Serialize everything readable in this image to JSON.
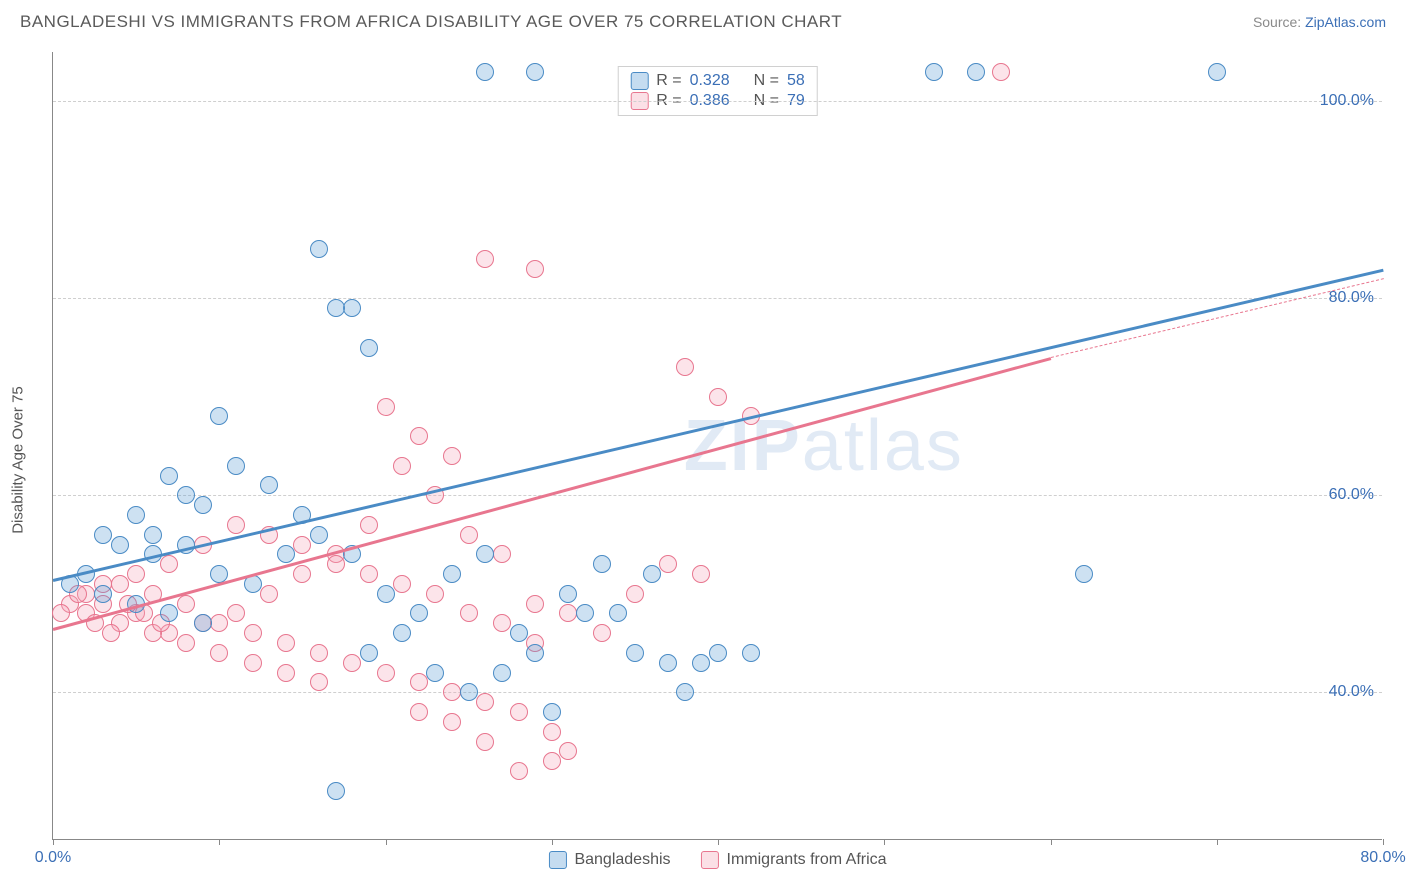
{
  "title": "BANGLADESHI VS IMMIGRANTS FROM AFRICA DISABILITY AGE OVER 75 CORRELATION CHART",
  "source_label": "Source:",
  "source_name": "ZipAtlas.com",
  "watermark": "ZIPatlas",
  "chart": {
    "type": "scatter",
    "y_axis_label": "Disability Age Over 75",
    "xlim": [
      0,
      80
    ],
    "ylim": [
      25,
      105
    ],
    "x_ticks": [
      0,
      10,
      20,
      30,
      40,
      50,
      60,
      70,
      80
    ],
    "x_tick_labels": {
      "0": "0.0%",
      "80": "80.0%"
    },
    "y_gridlines": [
      40,
      60,
      80,
      100
    ],
    "y_tick_labels": {
      "40": "40.0%",
      "60": "60.0%",
      "80": "80.0%",
      "100": "100.0%"
    },
    "background_color": "#ffffff",
    "grid_color": "#cfcfcf",
    "axis_color": "#888888",
    "tick_label_color": "#3b6fb6",
    "marker_radius": 9,
    "marker_stroke_width": 1.5,
    "marker_fill_opacity": 0.3,
    "series": [
      {
        "name": "Bangladeshis",
        "color": "#5a9bd5",
        "stroke": "#4a8bc5",
        "R": "0.328",
        "N": "58",
        "trend": {
          "x1": 0,
          "y1": 51.5,
          "x2": 80,
          "y2": 83,
          "line_width": 2.5
        },
        "points": [
          [
            26,
            103
          ],
          [
            29,
            103
          ],
          [
            53,
            103
          ],
          [
            55.5,
            103
          ],
          [
            70,
            103
          ],
          [
            16,
            85
          ],
          [
            18,
            79
          ],
          [
            17,
            79
          ],
          [
            19,
            75
          ],
          [
            10,
            68
          ],
          [
            8,
            60
          ],
          [
            9,
            59
          ],
          [
            5,
            58
          ],
          [
            3,
            56
          ],
          [
            7,
            62
          ],
          [
            4,
            55
          ],
          [
            6,
            54
          ],
          [
            2,
            52
          ],
          [
            1,
            51
          ],
          [
            3,
            50
          ],
          [
            5,
            49
          ],
          [
            7,
            48
          ],
          [
            9,
            47
          ],
          [
            6,
            56
          ],
          [
            8,
            55
          ],
          [
            10,
            52
          ],
          [
            12,
            51
          ],
          [
            14,
            54
          ],
          [
            11,
            63
          ],
          [
            13,
            61
          ],
          [
            15,
            58
          ],
          [
            16,
            56
          ],
          [
            18,
            54
          ],
          [
            20,
            50
          ],
          [
            22,
            48
          ],
          [
            21,
            46
          ],
          [
            24,
            52
          ],
          [
            26,
            54
          ],
          [
            28,
            46
          ],
          [
            27,
            42
          ],
          [
            30,
            38
          ],
          [
            25,
            40
          ],
          [
            19,
            44
          ],
          [
            17,
            30
          ],
          [
            23,
            42
          ],
          [
            29,
            44
          ],
          [
            31,
            50
          ],
          [
            33,
            53
          ],
          [
            35,
            44
          ],
          [
            37,
            43
          ],
          [
            39,
            43
          ],
          [
            40,
            44
          ],
          [
            36,
            52
          ],
          [
            38,
            40
          ],
          [
            34,
            48
          ],
          [
            32,
            48
          ],
          [
            62,
            52
          ],
          [
            42,
            44
          ]
        ]
      },
      {
        "name": "Immigrants from Africa",
        "color": "#f4a6b8",
        "stroke": "#e8768f",
        "R": "0.386",
        "N": "79",
        "trend": {
          "x1": 0,
          "y1": 46.5,
          "x2": 60,
          "y2": 74,
          "dashed_to_x": 80,
          "dashed_to_y": 82,
          "line_width": 2.5
        },
        "points": [
          [
            57,
            103
          ],
          [
            26,
            84
          ],
          [
            29,
            83
          ],
          [
            20,
            69
          ],
          [
            22,
            66
          ],
          [
            24,
            64
          ],
          [
            21,
            63
          ],
          [
            23,
            60
          ],
          [
            25,
            56
          ],
          [
            27,
            54
          ],
          [
            29,
            49
          ],
          [
            19,
            57
          ],
          [
            17,
            54
          ],
          [
            15,
            52
          ],
          [
            13,
            50
          ],
          [
            11,
            48
          ],
          [
            9,
            47
          ],
          [
            7,
            46
          ],
          [
            5,
            48
          ],
          [
            3,
            49
          ],
          [
            2,
            50
          ],
          [
            4,
            51
          ],
          [
            6,
            50
          ],
          [
            8,
            49
          ],
          [
            10,
            47
          ],
          [
            12,
            46
          ],
          [
            14,
            45
          ],
          [
            16,
            44
          ],
          [
            18,
            43
          ],
          [
            20,
            42
          ],
          [
            22,
            41
          ],
          [
            24,
            40
          ],
          [
            26,
            39
          ],
          [
            28,
            38
          ],
          [
            30,
            36
          ],
          [
            31,
            34
          ],
          [
            29,
            45
          ],
          [
            27,
            47
          ],
          [
            25,
            48
          ],
          [
            23,
            50
          ],
          [
            21,
            51
          ],
          [
            19,
            52
          ],
          [
            17,
            53
          ],
          [
            15,
            55
          ],
          [
            13,
            56
          ],
          [
            11,
            57
          ],
          [
            9,
            55
          ],
          [
            7,
            53
          ],
          [
            5,
            52
          ],
          [
            3,
            51
          ],
          [
            2,
            48
          ],
          [
            4,
            47
          ],
          [
            6,
            46
          ],
          [
            8,
            45
          ],
          [
            10,
            44
          ],
          [
            12,
            43
          ],
          [
            14,
            42
          ],
          [
            16,
            41
          ],
          [
            31,
            48
          ],
          [
            33,
            46
          ],
          [
            35,
            50
          ],
          [
            37,
            53
          ],
          [
            39,
            52
          ],
          [
            38,
            73
          ],
          [
            40,
            70
          ],
          [
            42,
            68
          ],
          [
            28,
            32
          ],
          [
            30,
            33
          ],
          [
            26,
            35
          ],
          [
            24,
            37
          ],
          [
            22,
            38
          ],
          [
            1,
            49
          ],
          [
            0.5,
            48
          ],
          [
            1.5,
            50
          ],
          [
            2.5,
            47
          ],
          [
            3.5,
            46
          ],
          [
            4.5,
            49
          ],
          [
            5.5,
            48
          ],
          [
            6.5,
            47
          ]
        ]
      }
    ],
    "stats_legend_labels": {
      "R": "R =",
      "N": "N ="
    },
    "bottom_legend_labels": [
      "Bangladeshis",
      "Immigrants from Africa"
    ]
  }
}
